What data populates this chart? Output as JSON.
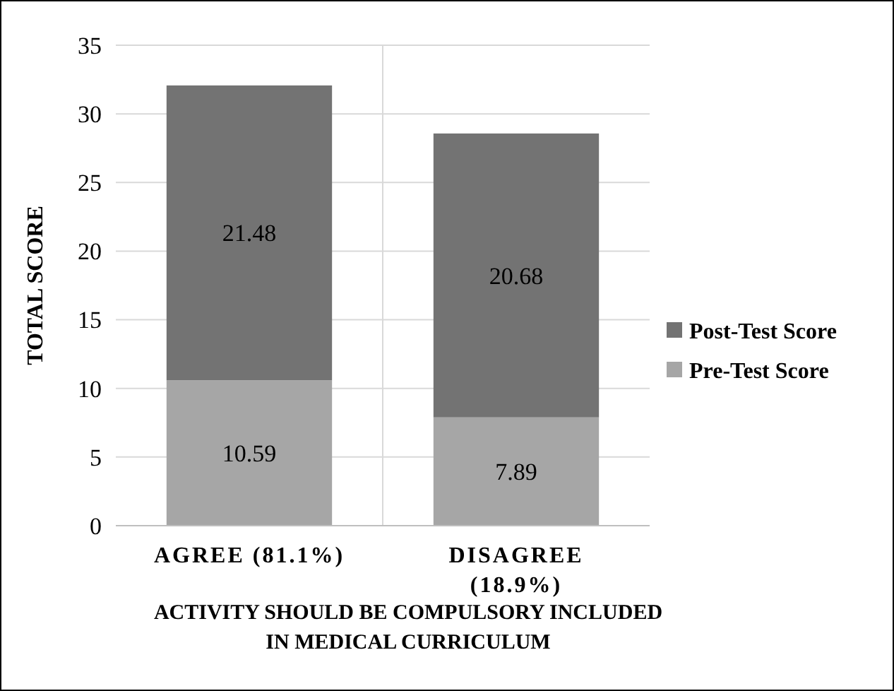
{
  "chart_data": {
    "type": "bar",
    "stacked": true,
    "categories": [
      "AGREE (81.1%)",
      "DISAGREE (18.9%)"
    ],
    "series": [
      {
        "name": "Pre-Test Score",
        "color": "#a6a6a6",
        "values": [
          10.59,
          7.89
        ]
      },
      {
        "name": "Post-Test Score",
        "color": "#737373",
        "values": [
          21.48,
          20.68
        ]
      }
    ],
    "ylabel": "TOTAL SCORE",
    "xlabel": "ACTIVITY SHOULD BE COMPULSORY INCLUDED IN MEDICAL CURRICULUM",
    "ylim": [
      0,
      35
    ],
    "yticks": [
      0,
      5,
      10,
      15,
      20,
      25,
      30,
      35
    ],
    "grid": "y",
    "legend": "right",
    "data_labels": true
  }
}
